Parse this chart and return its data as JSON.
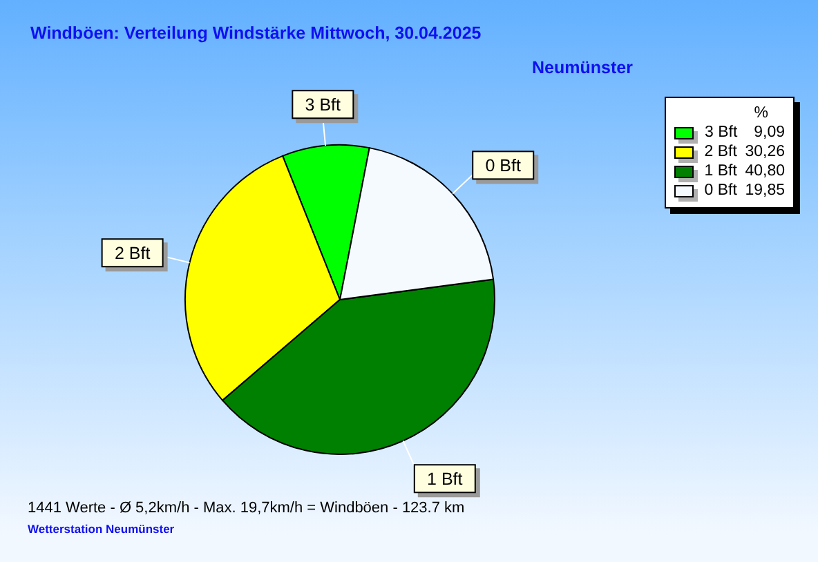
{
  "chart_data": {
    "type": "pie",
    "title": "Windböen: Verteilung Windstärke Mittwoch, 30.04.2025",
    "subtitle": "Neumünster",
    "categories": [
      "3 Bft",
      "2 Bft",
      "1 Bft",
      "0 Bft"
    ],
    "values": [
      9.09,
      30.26,
      40.8,
      19.85
    ],
    "colors": [
      "#00ff00",
      "#ffff00",
      "#008000",
      "#f5faff"
    ],
    "value_labels": [
      "9,09",
      "30,26",
      "40,80",
      "19,85"
    ],
    "legend": "top right",
    "legend_title": "%",
    "annotations": [
      "1441 Werte - Ø 5,2km/h - Max. 19,7km/h = Windböen - 123.7 km",
      "Wetterstation Neumünster"
    ]
  }
}
